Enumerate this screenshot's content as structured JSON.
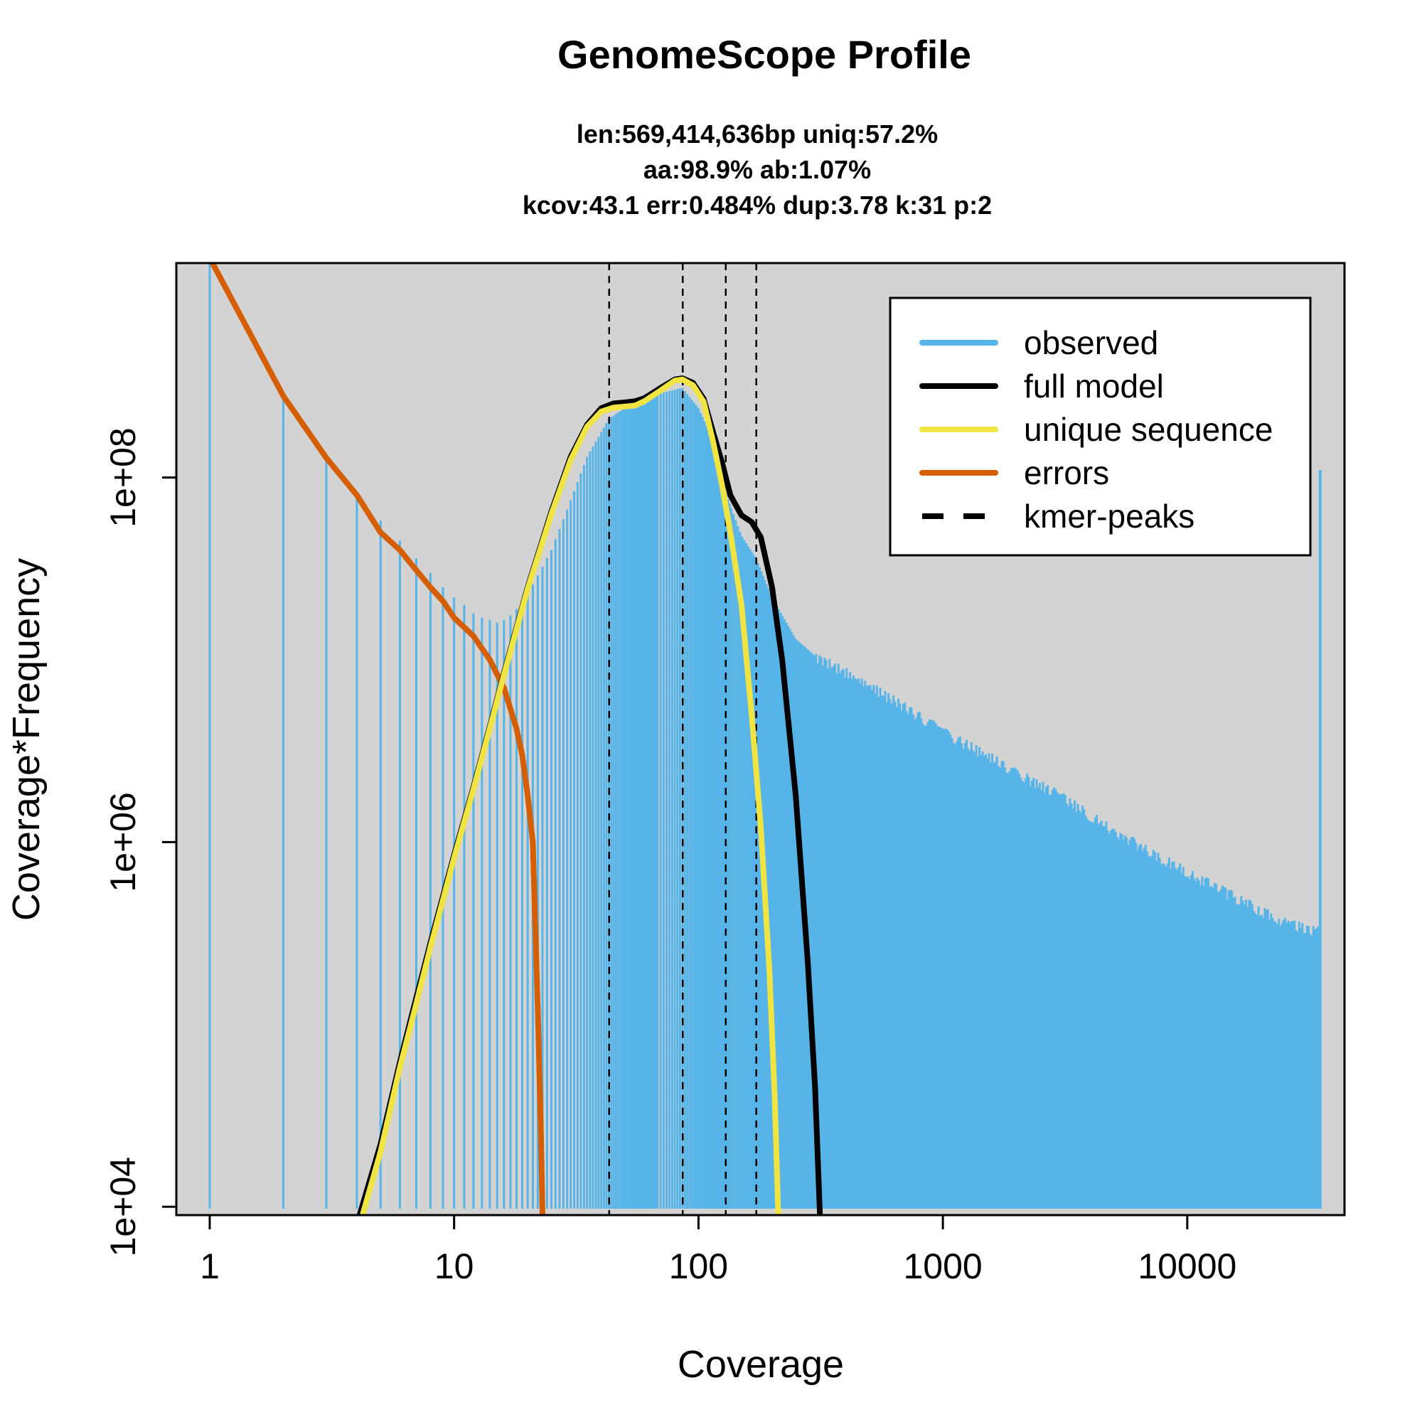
{
  "chart_data": {
    "type": "line",
    "title": "GenomeScope Profile",
    "subtitle_lines": [
      "len:569,414,636bp uniq:57.2%",
      "aa:98.9% ab:1.07%",
      "kcov:43.1 err:0.484%  dup:3.78  k:31 p:2"
    ],
    "xlabel": "Coverage",
    "ylabel": "Coverage*Frequency",
    "x_scale": "log",
    "y_scale": "log",
    "xlim": [
      0.73,
      44000
    ],
    "ylim": [
      9000,
      1500000000
    ],
    "x_ticks": [
      {
        "value": 1,
        "label": "1"
      },
      {
        "value": 10,
        "label": "10"
      },
      {
        "value": 100,
        "label": "100"
      },
      {
        "value": 1000,
        "label": "1000"
      },
      {
        "value": 10000,
        "label": "10000"
      }
    ],
    "y_ticks": [
      {
        "value": 10000,
        "label": "1e+04"
      },
      {
        "value": 1000000,
        "label": "1e+06"
      },
      {
        "value": 100000000,
        "label": "1e+08"
      }
    ],
    "background": "#d3d3d3",
    "legend": {
      "position": "top-right",
      "items": [
        {
          "label": "observed",
          "color": "#56b4e9",
          "style": "solid"
        },
        {
          "label": "full model",
          "color": "#000000",
          "style": "solid"
        },
        {
          "label": "unique sequence",
          "color": "#f0e442",
          "style": "solid"
        },
        {
          "label": "errors",
          "color": "#d55e00",
          "style": "solid"
        },
        {
          "label": "kmer-peaks",
          "color": "#000000",
          "style": "dashed"
        }
      ]
    },
    "kmer_peaks": [
      43.1,
      86.2,
      129.3,
      172.4
    ],
    "series": [
      {
        "name": "observed",
        "color": "#56b4e9",
        "style": "histogram",
        "points": [
          [
            1,
            1500000000
          ],
          [
            2,
            270000000
          ],
          [
            3,
            125000000
          ],
          [
            4,
            82000000
          ],
          [
            5,
            58000000
          ],
          [
            6,
            45000000
          ],
          [
            7,
            36000000
          ],
          [
            8,
            30000000
          ],
          [
            9,
            25000000
          ],
          [
            10,
            22000000
          ],
          [
            11,
            20000000
          ],
          [
            12,
            18000000
          ],
          [
            13,
            17000000
          ],
          [
            14,
            16500000
          ],
          [
            15,
            16000000
          ],
          [
            16,
            16500000
          ],
          [
            17,
            17500000
          ],
          [
            18,
            19000000
          ],
          [
            20,
            23000000
          ],
          [
            22,
            29000000
          ],
          [
            25,
            40000000
          ],
          [
            30,
            75000000
          ],
          [
            35,
            130000000
          ],
          [
            43,
            210000000
          ],
          [
            50,
            240000000
          ],
          [
            60,
            250000000
          ],
          [
            70,
            290000000
          ],
          [
            86,
            310000000
          ],
          [
            100,
            240000000
          ],
          [
            115,
            160000000
          ],
          [
            130,
            80000000
          ],
          [
            150,
            48000000
          ],
          [
            172,
            36000000
          ],
          [
            200,
            22000000
          ],
          [
            250,
            13000000
          ],
          [
            300,
            10500000
          ],
          [
            400,
            8500000
          ],
          [
            500,
            7200000
          ],
          [
            700,
            5500000
          ],
          [
            1000,
            4000000
          ],
          [
            1500,
            3000000
          ],
          [
            2000,
            2400000
          ],
          [
            3000,
            1800000
          ],
          [
            5000,
            1150000
          ],
          [
            8000,
            800000
          ],
          [
            12000,
            600000
          ],
          [
            18000,
            450000
          ],
          [
            25000,
            360000
          ],
          [
            32000,
            330000
          ],
          [
            35000,
            320000
          ]
        ]
      },
      {
        "name": "full model",
        "color": "#000000",
        "style": "line",
        "points": [
          [
            4,
            8000
          ],
          [
            5,
            22000
          ],
          [
            6,
            62000
          ],
          [
            7,
            140000
          ],
          [
            8,
            280000
          ],
          [
            10,
            850000
          ],
          [
            12,
            2000000
          ],
          [
            14,
            4300000
          ],
          [
            16,
            8500000
          ],
          [
            20,
            25000000
          ],
          [
            25,
            65000000
          ],
          [
            30,
            130000000
          ],
          [
            35,
            195000000
          ],
          [
            40,
            240000000
          ],
          [
            45,
            255000000
          ],
          [
            50,
            258000000
          ],
          [
            55,
            262000000
          ],
          [
            60,
            272000000
          ],
          [
            70,
            310000000
          ],
          [
            80,
            345000000
          ],
          [
            86,
            350000000
          ],
          [
            95,
            330000000
          ],
          [
            105,
            270000000
          ],
          [
            115,
            175000000
          ],
          [
            125,
            120000000
          ],
          [
            135,
            80000000
          ],
          [
            150,
            62000000
          ],
          [
            165,
            57000000
          ],
          [
            180,
            47000000
          ],
          [
            200,
            25000000
          ],
          [
            220,
            10000000
          ],
          [
            250,
            1800000
          ],
          [
            280,
            220000
          ],
          [
            300,
            45000
          ],
          [
            315,
            8000
          ]
        ]
      },
      {
        "name": "unique sequence",
        "color": "#f0e442",
        "style": "line",
        "points": [
          [
            4,
            7000
          ],
          [
            5,
            20000
          ],
          [
            6,
            58000
          ],
          [
            7,
            130000
          ],
          [
            8,
            265000
          ],
          [
            10,
            820000
          ],
          [
            12,
            1950000
          ],
          [
            14,
            4200000
          ],
          [
            16,
            8300000
          ],
          [
            20,
            24500000
          ],
          [
            25,
            63000000
          ],
          [
            30,
            125000000
          ],
          [
            35,
            190000000
          ],
          [
            40,
            230000000
          ],
          [
            45,
            242000000
          ],
          [
            50,
            245000000
          ],
          [
            55,
            248000000
          ],
          [
            60,
            262000000
          ],
          [
            70,
            300000000
          ],
          [
            80,
            340000000
          ],
          [
            86,
            345000000
          ],
          [
            95,
            320000000
          ],
          [
            105,
            260000000
          ],
          [
            115,
            155000000
          ],
          [
            125,
            90000000
          ],
          [
            135,
            50000000
          ],
          [
            150,
            20000000
          ],
          [
            165,
            5000000
          ],
          [
            180,
            1200000
          ],
          [
            195,
            200000
          ],
          [
            205,
            40000
          ],
          [
            212,
            9000
          ]
        ]
      },
      {
        "name": "errors",
        "color": "#d55e00",
        "style": "line",
        "points": [
          [
            1,
            1600000000
          ],
          [
            2,
            280000000
          ],
          [
            3,
            128000000
          ],
          [
            4,
            80000000
          ],
          [
            5,
            50000000
          ],
          [
            6,
            40000000
          ],
          [
            7,
            31000000
          ],
          [
            8,
            25000000
          ],
          [
            9,
            21000000
          ],
          [
            10,
            17000000
          ],
          [
            12,
            13500000
          ],
          [
            14,
            10000000
          ],
          [
            16,
            7000000
          ],
          [
            18,
            4200000
          ],
          [
            19,
            3000000
          ],
          [
            20,
            1800000
          ],
          [
            21,
            1000000
          ],
          [
            22,
            120000
          ],
          [
            22.6,
            30000
          ],
          [
            23,
            9000
          ]
        ]
      }
    ]
  }
}
